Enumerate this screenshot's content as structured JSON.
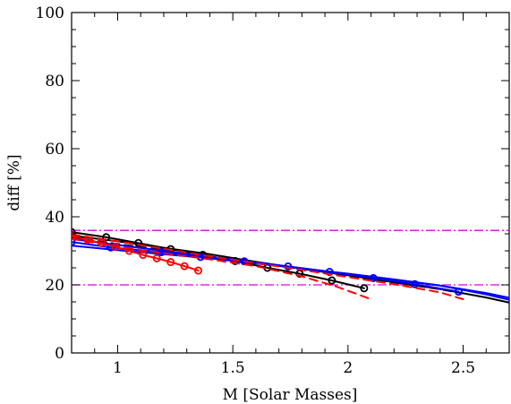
{
  "chart_data": {
    "type": "line",
    "xlabel": "M [Solar Masses]",
    "ylabel": "diff [%]",
    "xlim": [
      0.8,
      2.7
    ],
    "ylim": [
      0,
      100
    ],
    "x_ticks": [
      "1",
      "1.5",
      "2",
      "2.5"
    ],
    "x_tick_values": [
      1,
      1.5,
      2,
      2.5
    ],
    "y_ticks": [
      "0",
      "20",
      "40",
      "60",
      "80",
      "100"
    ],
    "y_tick_values": [
      0,
      20,
      40,
      60,
      80,
      100
    ],
    "grid": false,
    "reference_lines": [
      {
        "y": 36,
        "color": "#e000e0",
        "style": "dash-dot"
      },
      {
        "y": 20,
        "color": "#e000e0",
        "style": "dash-dot"
      }
    ],
    "series": [
      {
        "color": "#000000",
        "style": "solid",
        "markers": true,
        "x": [
          0.8,
          0.95,
          1.09,
          1.23,
          1.37,
          1.51,
          1.65,
          1.79,
          1.93,
          2.07
        ],
        "y": [
          35.5,
          34.0,
          32.3,
          30.5,
          28.8,
          27.0,
          25.0,
          23.3,
          21.3,
          19.0
        ]
      },
      {
        "color": "#000000",
        "style": "solid",
        "markers": false,
        "x": [
          0.8,
          1.0,
          1.2,
          1.4,
          1.6,
          1.8,
          2.0,
          2.2,
          2.4,
          2.6,
          2.7
        ],
        "y": [
          34.5,
          32.8,
          30.9,
          29.0,
          26.8,
          24.7,
          22.8,
          20.8,
          18.8,
          16.3,
          14.8
        ]
      },
      {
        "color": "#000000",
        "style": "dashed",
        "markers": false,
        "x": [
          0.8,
          1.0,
          1.2,
          1.4,
          1.6,
          1.8,
          2.0,
          2.2,
          2.4,
          2.5
        ],
        "y": [
          34.0,
          32.0,
          30.2,
          28.4,
          26.5,
          24.5,
          22.7,
          20.7,
          18.7,
          17.5
        ]
      },
      {
        "color": "#0000ff",
        "style": "solid",
        "markers": true,
        "x": [
          0.8,
          0.97,
          1.19,
          1.36,
          1.55,
          1.74,
          1.92,
          2.11,
          2.29,
          2.48
        ],
        "y": [
          32.6,
          31.0,
          29.6,
          28.2,
          26.9,
          25.4,
          23.8,
          22.0,
          20.2,
          18.0
        ]
      },
      {
        "color": "#0000ff",
        "style": "solid",
        "markers": false,
        "x": [
          0.8,
          1.0,
          1.2,
          1.4,
          1.6,
          1.8,
          2.0,
          2.2,
          2.4,
          2.6,
          2.7
        ],
        "y": [
          31.5,
          30.2,
          29.0,
          27.8,
          26.3,
          24.8,
          23.3,
          21.6,
          19.8,
          17.6,
          16.2
        ]
      },
      {
        "color": "#0000ff",
        "style": "solid",
        "markers": false,
        "x": [
          0.8,
          1.0,
          1.2,
          1.4,
          1.6,
          1.8,
          2.0,
          2.2,
          2.4,
          2.6,
          2.7
        ],
        "y": [
          33.5,
          31.7,
          30.0,
          28.3,
          26.6,
          24.9,
          23.2,
          21.5,
          19.8,
          17.2,
          15.6
        ]
      },
      {
        "color": "#ff0000",
        "style": "solid",
        "markers": true,
        "x": [
          0.8,
          0.87,
          0.93,
          0.99,
          1.05,
          1.11,
          1.17,
          1.23,
          1.29,
          1.35
        ],
        "y": [
          34.3,
          33.2,
          32.3,
          31.2,
          30.0,
          28.8,
          27.8,
          26.7,
          25.5,
          24.2
        ]
      },
      {
        "color": "#ff0000",
        "style": "dashed",
        "markers": false,
        "x": [
          0.8,
          1.0,
          1.2,
          1.4,
          1.6,
          1.8,
          1.95,
          2.1
        ],
        "y": [
          33.5,
          31.2,
          29.3,
          27.5,
          25.5,
          22.5,
          19.5,
          15.8
        ]
      },
      {
        "color": "#ff0000",
        "style": "dashed",
        "markers": false,
        "x": [
          0.8,
          1.0,
          1.2,
          1.4,
          1.6,
          1.8,
          2.0,
          2.2,
          2.4,
          2.5
        ],
        "y": [
          34.8,
          32.8,
          30.6,
          28.4,
          26.4,
          24.4,
          22.3,
          20.2,
          17.8,
          15.8
        ]
      }
    ]
  }
}
